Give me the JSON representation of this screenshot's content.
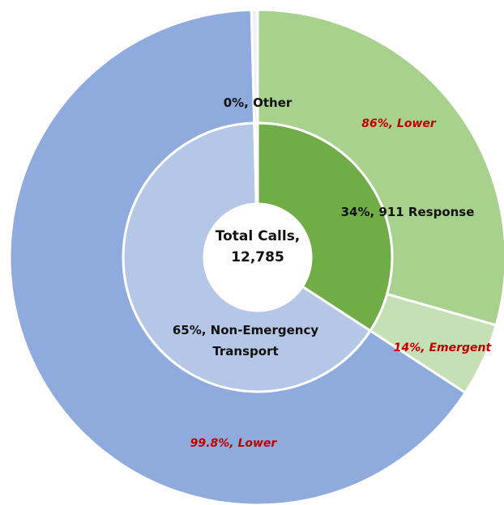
{
  "chart_data": {
    "type": "sunburst",
    "center_title": "Total Calls,",
    "total": {
      "value": 12785,
      "label": "12,785"
    },
    "values": [
      34,
      65,
      0.4
    ],
    "value_labels": [
      "34%, 911 Response",
      "65%, Non-Emergency Transport",
      "0%, Other"
    ],
    "colors": [
      "#70ad47",
      "#b4c7e7",
      "#f2f2f2"
    ],
    "children": [
      {
        "values": [
          86,
          14
        ],
        "value_labels": [
          "86%, Lower",
          "14%, Emergent"
        ],
        "colors": [
          "#a9d18e",
          "#c5e0b4"
        ]
      },
      {
        "values": [
          99.8
        ],
        "value_labels": [
          "99.8%, Lower"
        ],
        "colors": [
          "#8faadc"
        ]
      },
      {
        "values": [
          100
        ],
        "value_labels": [
          null
        ],
        "colors": [
          "#eef1f7"
        ]
      }
    ]
  }
}
